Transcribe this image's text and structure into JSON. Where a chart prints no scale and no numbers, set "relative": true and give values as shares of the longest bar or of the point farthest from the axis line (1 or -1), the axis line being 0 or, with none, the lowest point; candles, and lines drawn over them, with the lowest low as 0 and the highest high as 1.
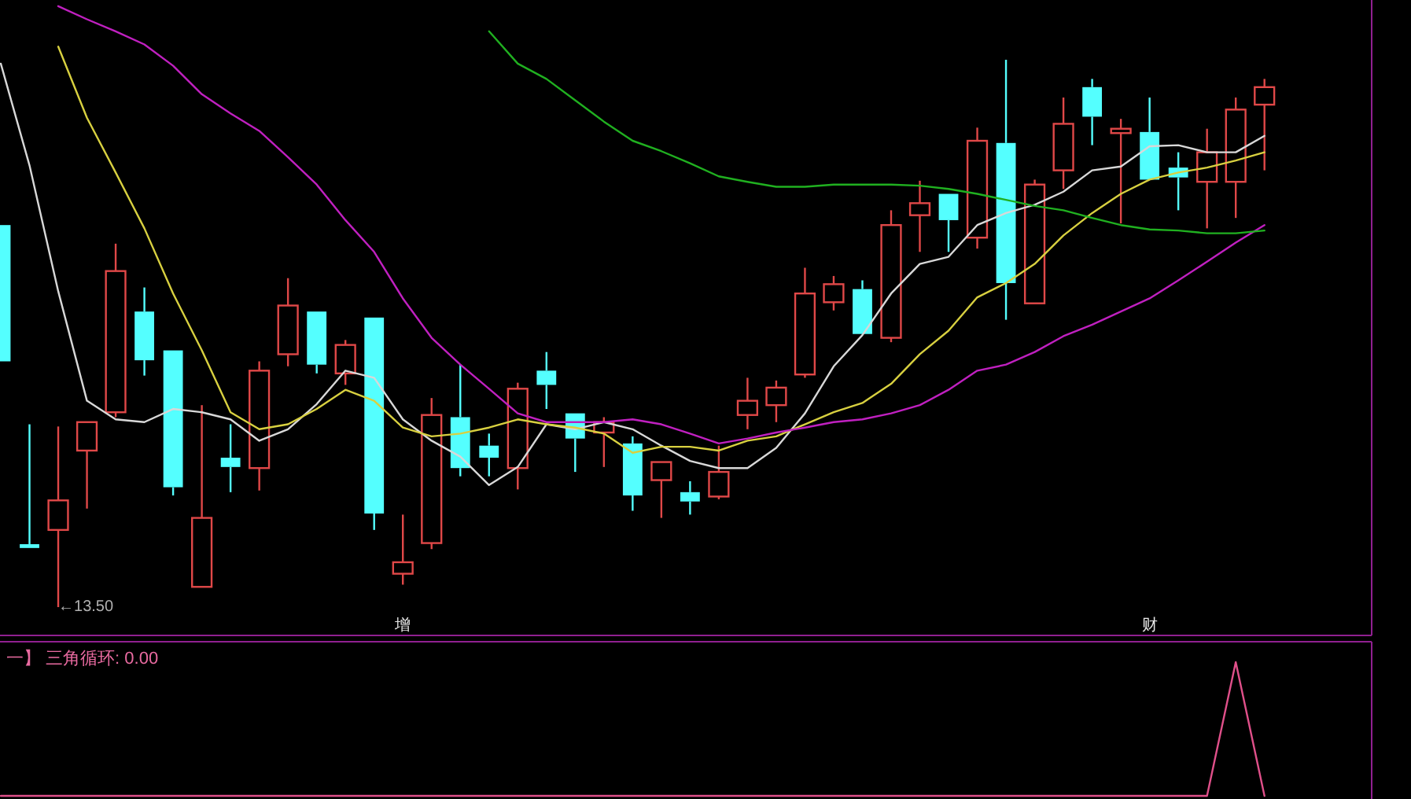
{
  "chart_data": [
    {
      "type": "candlestick",
      "relative": true,
      "categories": [
        null,
        null,
        null,
        null,
        null,
        null,
        null,
        null,
        null,
        null,
        null,
        null,
        null,
        null,
        "增",
        null,
        null,
        null,
        null,
        null,
        null,
        null,
        null,
        null,
        null,
        null,
        null,
        null,
        null,
        null,
        null,
        null,
        null,
        null,
        null,
        null,
        null,
        null,
        null,
        null,
        "财",
        null,
        null,
        null,
        null
      ],
      "ohlc": [
        [
          0.698,
          0.698,
          0.449,
          0.449
        ],
        [
          0.115,
          0.334,
          0.108,
          0.108
        ],
        [
          0.141,
          0.33,
          0,
          0.195
        ],
        [
          0.286,
          0.338,
          0.18,
          0.338
        ],
        [
          0.356,
          0.664,
          0.347,
          0.614
        ],
        [
          0.54,
          0.584,
          0.423,
          0.451
        ],
        [
          0.469,
          0.469,
          0.204,
          0.219
        ],
        [
          0.037,
          0.369,
          0.037,
          0.163
        ],
        [
          0.273,
          0.334,
          0.21,
          0.256
        ],
        [
          0.254,
          0.449,
          0.213,
          0.432
        ],
        [
          0.462,
          0.601,
          0.44,
          0.551
        ],
        [
          0.54,
          0.54,
          0.427,
          0.443
        ],
        [
          0.427,
          0.488,
          0.406,
          0.479
        ],
        [
          0.529,
          0.529,
          0.141,
          0.171
        ],
        [
          0.061,
          0.169,
          0.041,
          0.082
        ],
        [
          0.117,
          0.382,
          0.106,
          0.351
        ],
        [
          0.347,
          0.443,
          0.239,
          0.254
        ],
        [
          0.295,
          0.317,
          0.239,
          0.273
        ],
        [
          0.254,
          0.41,
          0.215,
          0.399
        ],
        [
          0.432,
          0.466,
          0.362,
          0.406
        ],
        [
          0.354,
          0.354,
          0.247,
          0.308
        ],
        [
          0.319,
          0.347,
          0.256,
          0.338
        ],
        [
          0.299,
          0.312,
          0.176,
          0.204
        ],
        [
          0.232,
          0.265,
          0.163,
          0.265
        ],
        [
          0.21,
          0.23,
          0.169,
          0.193
        ],
        [
          0.202,
          0.295,
          0.197,
          0.247
        ],
        [
          0.351,
          0.419,
          0.325,
          0.377
        ],
        [
          0.369,
          0.414,
          0.338,
          0.401
        ],
        [
          0.425,
          0.62,
          0.419,
          0.573
        ],
        [
          0.557,
          0.605,
          0.542,
          0.59
        ],
        [
          0.581,
          0.597,
          0.499,
          0.499
        ],
        [
          0.492,
          0.725,
          0.484,
          0.698
        ],
        [
          0.716,
          0.779,
          0.649,
          0.738
        ],
        [
          0.755,
          0.755,
          0.649,
          0.707
        ],
        [
          0.675,
          0.876,
          0.655,
          0.852
        ],
        [
          0.848,
          1,
          0.525,
          0.592
        ],
        [
          0.555,
          0.781,
          0.555,
          0.772
        ],
        [
          0.798,
          0.931,
          0.764,
          0.883
        ],
        [
          0.95,
          0.965,
          0.844,
          0.896
        ],
        [
          0.866,
          0.892,
          0.701,
          0.874
        ],
        [
          0.868,
          0.931,
          0.781,
          0.781
        ],
        [
          0.803,
          0.831,
          0.725,
          0.785
        ],
        [
          0.777,
          0.874,
          0.692,
          0.831
        ],
        [
          0.777,
          0.931,
          0.711,
          0.909
        ],
        [
          0.918,
          0.965,
          0.798,
          0.95
        ]
      ],
      "series": [
        {
          "type": "line",
          "color": "#d8d8d8",
          "values": [
            0.993,
            0.807,
            0.577,
            0.377,
            0.343,
            0.338,
            0.362,
            0.356,
            0.343,
            0.304,
            0.325,
            0.371,
            0.432,
            0.419,
            0.343,
            0.304,
            0.275,
            0.223,
            0.256,
            0.334,
            0.325,
            0.338,
            0.325,
            0.295,
            0.267,
            0.254,
            0.254,
            0.291,
            0.354,
            0.44,
            0.497,
            0.573,
            0.627,
            0.64,
            0.698,
            0.72,
            0.735,
            0.759,
            0.798,
            0.805,
            0.842,
            0.844,
            0.831,
            0.831,
            0.861
          ]
        },
        {
          "type": "line",
          "color": "#d8d040",
          "values": [
            null,
            null,
            1.024,
            0.894,
            0.794,
            0.692,
            0.573,
            0.469,
            0.356,
            0.325,
            0.334,
            0.362,
            0.397,
            0.377,
            0.328,
            0.312,
            0.317,
            0.328,
            0.343,
            0.334,
            0.328,
            0.317,
            0.282,
            0.293,
            0.293,
            0.286,
            0.304,
            0.312,
            0.334,
            0.356,
            0.373,
            0.408,
            0.462,
            0.505,
            0.566,
            0.592,
            0.627,
            0.679,
            0.72,
            0.755,
            0.781,
            0.794,
            0.803,
            0.816,
            0.831
          ]
        },
        {
          "type": "line",
          "color": "#c020c0",
          "values": [
            null,
            null,
            1.098,
            1.074,
            1.052,
            1.028,
            0.989,
            0.937,
            0.902,
            0.87,
            0.822,
            0.772,
            0.707,
            0.649,
            0.564,
            0.492,
            0.443,
            0.399,
            0.354,
            0.338,
            0.338,
            0.338,
            0.343,
            0.334,
            0.317,
            0.299,
            0.308,
            0.319,
            0.328,
            0.338,
            0.343,
            0.354,
            0.369,
            0.397,
            0.432,
            0.443,
            0.466,
            0.495,
            0.516,
            0.54,
            0.564,
            0.597,
            0.631,
            0.666,
            0.698
          ]
        },
        {
          "type": "line",
          "color": "#20b020",
          "values": [
            null,
            null,
            null,
            null,
            null,
            null,
            null,
            null,
            null,
            null,
            null,
            null,
            null,
            null,
            null,
            null,
            null,
            1.052,
            0.993,
            0.965,
            0.926,
            0.887,
            0.852,
            0.833,
            0.811,
            0.787,
            0.777,
            0.768,
            0.768,
            0.772,
            0.772,
            0.772,
            0.77,
            0.764,
            0.755,
            0.744,
            0.733,
            0.725,
            0.711,
            0.698,
            0.69,
            0.688,
            0.683,
            0.683,
            0.688
          ]
        }
      ],
      "tick_labels": "x",
      "annotations": [
        "←13.50"
      ]
    },
    {
      "type": "line",
      "relative": true,
      "title": "一】 三角循环: 0.00",
      "categories": [
        null,
        null,
        null,
        null,
        null,
        null,
        null,
        null,
        null,
        null,
        null,
        null,
        null,
        null,
        null,
        null,
        null,
        null,
        null,
        null,
        null,
        null,
        null,
        null,
        null,
        null,
        null,
        null,
        null,
        null,
        null,
        null,
        null,
        null,
        null,
        null,
        null,
        null,
        null,
        null,
        null,
        null,
        null,
        null,
        null
      ],
      "series": [
        {
          "color": "#e0508a",
          "values": [
            0,
            0,
            0,
            0,
            0,
            0,
            0,
            0,
            0,
            0,
            0,
            0,
            0,
            0,
            0,
            0,
            0,
            0,
            0,
            0,
            0,
            0,
            0,
            0,
            0,
            0,
            0,
            0,
            0,
            0,
            0,
            0,
            0,
            0,
            0,
            0,
            0,
            0,
            0,
            0,
            0,
            0,
            0,
            1,
            0
          ]
        }
      ],
      "tick_labels": false
    }
  ]
}
